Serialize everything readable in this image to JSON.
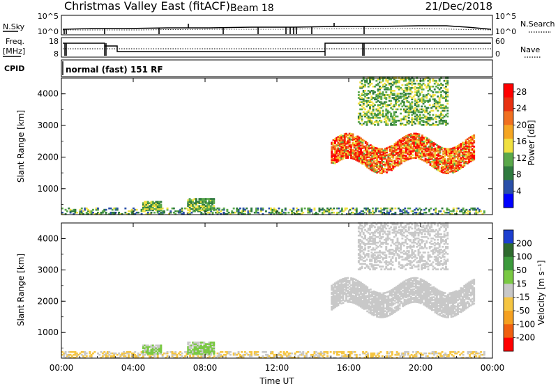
{
  "header": {
    "station": "Christmas Valley East (fitACF)",
    "beam": "Beam 18",
    "date": "21/Dec/2018"
  },
  "noise_panel": {
    "left_label": "N.Sky",
    "left_ticks": [
      "10^5",
      "10^0"
    ],
    "right_label": "N.Search",
    "right_ticks": [
      "10^5",
      "10^0"
    ]
  },
  "freq_panel": {
    "left_label_top": "Freq.",
    "left_label_bottom": "[MHz]",
    "left_ticks": [
      "18",
      "8"
    ],
    "right_label": "Nave",
    "right_ticks": [
      "60",
      "0"
    ]
  },
  "cpid_panel": {
    "label": "CPID",
    "text": "normal (fast) 151 RF"
  },
  "colors": {
    "power": [
      "#0000ff",
      "#2a4fa8",
      "#2f7a3f",
      "#5aa84a",
      "#f0e040",
      "#f5a623",
      "#f07020",
      "#e83010",
      "#ff0000"
    ],
    "velocity": [
      "#1c3fd0",
      "#2e6a2e",
      "#3c9a3c",
      "#7ac943",
      "#c8c8c8",
      "#f5c542",
      "#f5a020",
      "#f06010",
      "#ff0000"
    ]
  },
  "chart_data": [
    {
      "type": "heatmap",
      "name": "Power",
      "xlabel": "",
      "ylabel": "Slant Range [km]",
      "x_ticks": [
        "00:00",
        "04:00",
        "08:00",
        "12:00",
        "16:00",
        "20:00",
        "00:00"
      ],
      "xlim": [
        0,
        24
      ],
      "y_ticks": [
        1000,
        2000,
        3000,
        4000
      ],
      "ylim": [
        180,
        4500
      ],
      "colorbar_label": "Power [dB]",
      "colorbar_ticks": [
        4,
        8,
        12,
        16,
        20,
        24,
        28
      ],
      "colorbar_range": [
        0,
        30
      ],
      "features": [
        {
          "feature": "near-range scatter band",
          "t_start": 0.0,
          "t_end": 23.5,
          "range_km": [
            180,
            400
          ],
          "power_db": [
            4,
            16
          ]
        },
        {
          "feature": "patch",
          "t_start": 4.5,
          "t_end": 5.5,
          "range_km": [
            300,
            600
          ],
          "power_db": [
            8,
            16
          ]
        },
        {
          "feature": "patch",
          "t_start": 7.0,
          "t_end": 8.5,
          "range_km": [
            300,
            700
          ],
          "power_db": [
            8,
            16
          ]
        },
        {
          "feature": "far-range band",
          "t_start": 15.0,
          "t_end": 23.0,
          "range_km": [
            1400,
            2800
          ],
          "power_db": [
            12,
            32
          ]
        },
        {
          "feature": "upper scatter",
          "t_start": 16.5,
          "t_end": 21.5,
          "range_km": [
            3000,
            4500
          ],
          "power_db": [
            8,
            16
          ]
        }
      ]
    },
    {
      "type": "heatmap",
      "name": "Velocity",
      "xlabel": "Time UT",
      "ylabel": "Slant Range [km]",
      "x_ticks": [
        "00:00",
        "04:00",
        "08:00",
        "12:00",
        "16:00",
        "20:00",
        "00:00"
      ],
      "xlim": [
        0,
        24
      ],
      "y_ticks": [
        1000,
        2000,
        3000,
        4000
      ],
      "ylim": [
        180,
        4500
      ],
      "colorbar_label": "Velocity [m s⁻¹]",
      "colorbar_ticks": [
        "200",
        "100",
        "50",
        "15",
        "-15",
        "-50",
        "-100",
        "-200"
      ],
      "colorbar_range": [
        -250,
        250
      ],
      "features": [
        {
          "feature": "near-range scatter band",
          "t_start": 0.0,
          "t_end": 23.5,
          "range_km": [
            180,
            400
          ],
          "velocity_ms": [
            -50,
            -15
          ]
        },
        {
          "feature": "patch",
          "t_start": 4.5,
          "t_end": 5.5,
          "range_km": [
            300,
            600
          ],
          "velocity_ms": [
            15,
            50
          ]
        },
        {
          "feature": "patch",
          "t_start": 7.0,
          "t_end": 8.5,
          "range_km": [
            300,
            700
          ],
          "velocity_ms": [
            15,
            50
          ]
        },
        {
          "feature": "ground scatter band",
          "t_start": 15.0,
          "t_end": 23.0,
          "range_km": [
            1400,
            2800
          ],
          "velocity_ms": [
            -15,
            15
          ]
        },
        {
          "feature": "upper scatter",
          "t_start": 16.5,
          "t_end": 21.5,
          "range_km": [
            3000,
            4500
          ],
          "velocity_ms": [
            -15,
            15
          ]
        }
      ]
    }
  ]
}
